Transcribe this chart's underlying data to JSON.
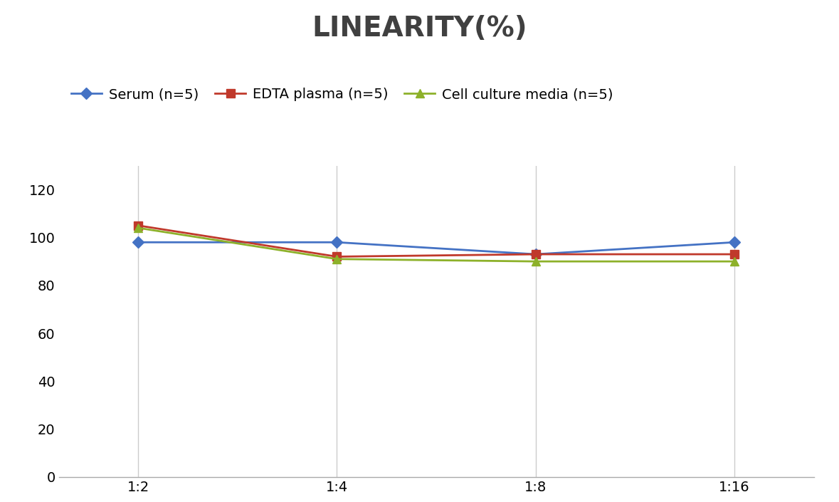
{
  "title": "LINEARITY(%)",
  "title_fontsize": 28,
  "title_fontweight": "bold",
  "title_color": "#404040",
  "x_labels": [
    "1:2",
    "1:4",
    "1:8",
    "1:16"
  ],
  "x_positions": [
    0,
    1,
    2,
    3
  ],
  "series": [
    {
      "label": "Serum (n=5)",
      "values": [
        98,
        98,
        93,
        98
      ],
      "color": "#4472C4",
      "marker": "D",
      "marker_size": 8,
      "linewidth": 2
    },
    {
      "label": "EDTA plasma (n=5)",
      "values": [
        105,
        92,
        93,
        93
      ],
      "color": "#C0392B",
      "marker": "s",
      "marker_size": 8,
      "linewidth": 2
    },
    {
      "label": "Cell culture media (n=5)",
      "values": [
        104,
        91,
        90,
        90
      ],
      "color": "#8DB12A",
      "marker": "^",
      "marker_size": 8,
      "linewidth": 2
    }
  ],
  "ylim": [
    0,
    130
  ],
  "yticks": [
    0,
    20,
    40,
    60,
    80,
    100,
    120
  ],
  "background_color": "#ffffff",
  "grid_color": "#cccccc",
  "legend_fontsize": 14,
  "tick_fontsize": 14,
  "figsize": [
    11.79,
    7.05
  ],
  "dpi": 100
}
